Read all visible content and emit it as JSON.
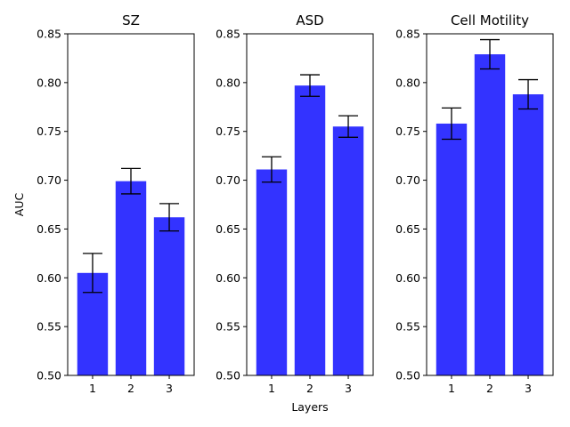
{
  "chart_data": [
    {
      "type": "bar",
      "title": "SZ",
      "categories": [
        "1",
        "2",
        "3"
      ],
      "values": [
        0.605,
        0.699,
        0.662
      ],
      "errors": [
        0.02,
        0.013,
        0.014
      ],
      "ylabel": "AUC",
      "xlabel": "",
      "ylim": [
        0.5,
        0.85
      ],
      "yticks": [
        "0.50",
        "0.55",
        "0.60",
        "0.65",
        "0.70",
        "0.75",
        "0.80",
        "0.85"
      ],
      "grid": false
    },
    {
      "type": "bar",
      "title": "ASD",
      "categories": [
        "1",
        "2",
        "3"
      ],
      "values": [
        0.711,
        0.797,
        0.755
      ],
      "errors": [
        0.013,
        0.011,
        0.011
      ],
      "ylabel": "",
      "xlabel": "Layers",
      "ylim": [
        0.5,
        0.85
      ],
      "yticks": [
        "0.50",
        "0.55",
        "0.60",
        "0.65",
        "0.70",
        "0.75",
        "0.80",
        "0.85"
      ],
      "grid": false
    },
    {
      "type": "bar",
      "title": "Cell Motility",
      "categories": [
        "1",
        "2",
        "3"
      ],
      "values": [
        0.758,
        0.829,
        0.788
      ],
      "errors": [
        0.016,
        0.015,
        0.015
      ],
      "ylabel": "",
      "xlabel": "",
      "ylim": [
        0.5,
        0.85
      ],
      "yticks": [
        "0.50",
        "0.55",
        "0.60",
        "0.65",
        "0.70",
        "0.75",
        "0.80",
        "0.85"
      ],
      "grid": false
    }
  ],
  "colors": {
    "bar": "#3333ff",
    "axis": "#000000",
    "error_bar": "#000000"
  }
}
